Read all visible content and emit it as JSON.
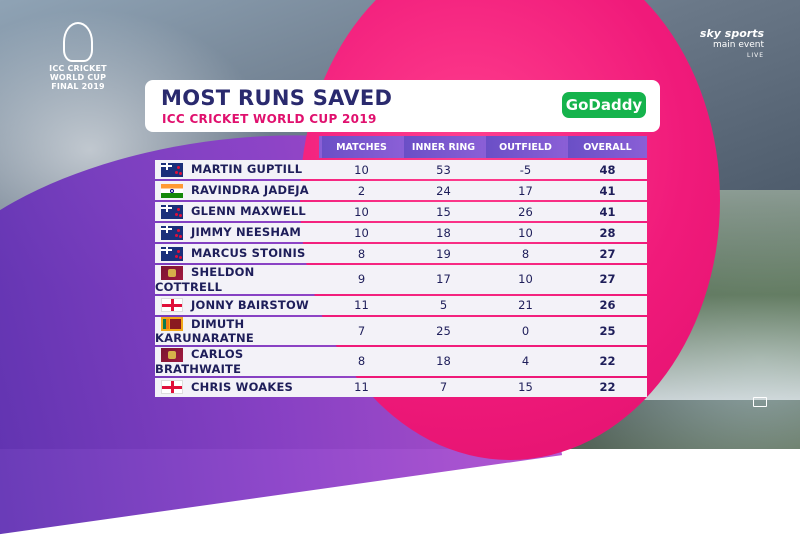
{
  "broadcast": {
    "event_logo_line1": "ICC CRICKET",
    "event_logo_line2": "WORLD CUP",
    "event_logo_line3": "FINAL 2019",
    "channel_line1": "sky sports",
    "channel_line2": "main event",
    "channel_line3": "LIVE"
  },
  "graphic": {
    "title": "MOST RUNS SAVED",
    "subtitle": "ICC CRICKET WORLD CUP 2019",
    "sponsor": "GoDaddy"
  },
  "table": {
    "columns": [
      "MATCHES",
      "INNER RING",
      "OUTFIELD",
      "OVERALL"
    ],
    "rows": [
      {
        "flag": "new-zealand-flag-icon",
        "name": "MARTIN GUPTILL",
        "matches": "10",
        "inner_ring": "53",
        "outfield": "-5",
        "overall": "48"
      },
      {
        "flag": "india-flag-icon",
        "name": "RAVINDRA JADEJA",
        "matches": "2",
        "inner_ring": "24",
        "outfield": "17",
        "overall": "41"
      },
      {
        "flag": "new-zealand-flag-icon",
        "name": "GLENN MAXWELL",
        "matches": "10",
        "inner_ring": "15",
        "outfield": "26",
        "overall": "41"
      },
      {
        "flag": "new-zealand-flag-icon",
        "name": "JIMMY NEESHAM",
        "matches": "10",
        "inner_ring": "18",
        "outfield": "10",
        "overall": "28"
      },
      {
        "flag": "new-zealand-flag-icon",
        "name": "MARCUS STOINIS",
        "matches": "8",
        "inner_ring": "19",
        "outfield": "8",
        "overall": "27"
      },
      {
        "flag": "west-indies-flag-icon",
        "name": "SHELDON COTTRELL",
        "matches": "9",
        "inner_ring": "17",
        "outfield": "10",
        "overall": "27"
      },
      {
        "flag": "england-flag-icon",
        "name": "JONNY BAIRSTOW",
        "matches": "11",
        "inner_ring": "5",
        "outfield": "21",
        "overall": "26"
      },
      {
        "flag": "sri-lanka-flag-icon",
        "name": "DIMUTH KARUNARATNE",
        "matches": "7",
        "inner_ring": "25",
        "outfield": "0",
        "overall": "25"
      },
      {
        "flag": "west-indies-flag-icon",
        "name": "CARLOS BRATHWAITE",
        "matches": "8",
        "inner_ring": "18",
        "outfield": "4",
        "overall": "22"
      },
      {
        "flag": "england-flag-icon",
        "name": "CHRIS WOAKES",
        "matches": "11",
        "inner_ring": "7",
        "outfield": "15",
        "overall": "22"
      }
    ]
  }
}
